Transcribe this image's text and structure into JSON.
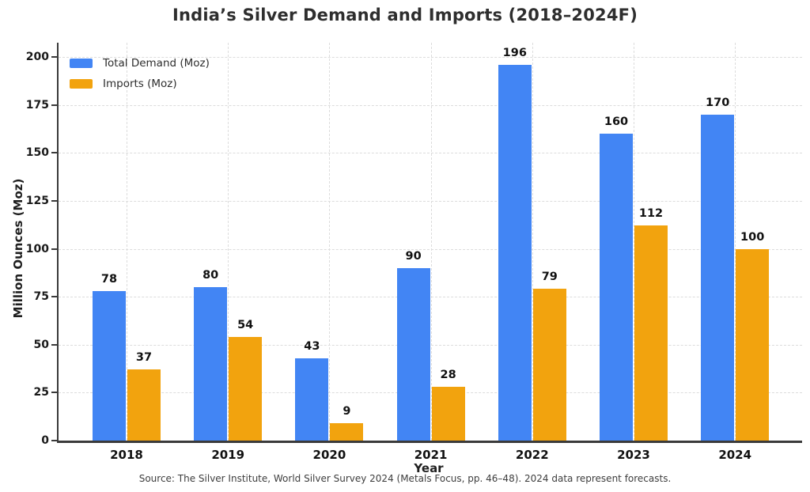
{
  "title": "India’s Silver Demand and Imports (2018–2024F)",
  "source_note": "Source: The Silver Institute, World Silver Survey 2024 (Metals Focus, pp. 46–48). 2024 data represent forecasts.",
  "chart_data": {
    "type": "bar",
    "title": "India’s Silver Demand and Imports (2018–2024F)",
    "categories": [
      "2018",
      "2019",
      "2020",
      "2021",
      "2022",
      "2023",
      "2024"
    ],
    "series": [
      {
        "name": "Total Demand (Moz)",
        "color": "#4285F4",
        "values": [
          78,
          80,
          43,
          90,
          196,
          160,
          170
        ]
      },
      {
        "name": "Imports (Moz)",
        "color": "#F2A30E",
        "values": [
          37,
          54,
          9,
          28,
          79,
          112,
          100
        ]
      }
    ],
    "xlabel": "Year",
    "ylabel": "Million Ounces (Moz)",
    "ylim": [
      0,
      208
    ],
    "yticks": [
      0,
      25,
      50,
      75,
      100,
      125,
      150,
      175,
      200
    ],
    "grid": true,
    "grid_style": "dashed",
    "legend_position": "upper left",
    "value_labels": true,
    "colors": {
      "demand": "#4285F4",
      "imports": "#F2A30E",
      "spine": "#3a3a3a",
      "gridline": "#dcdcdc"
    }
  }
}
